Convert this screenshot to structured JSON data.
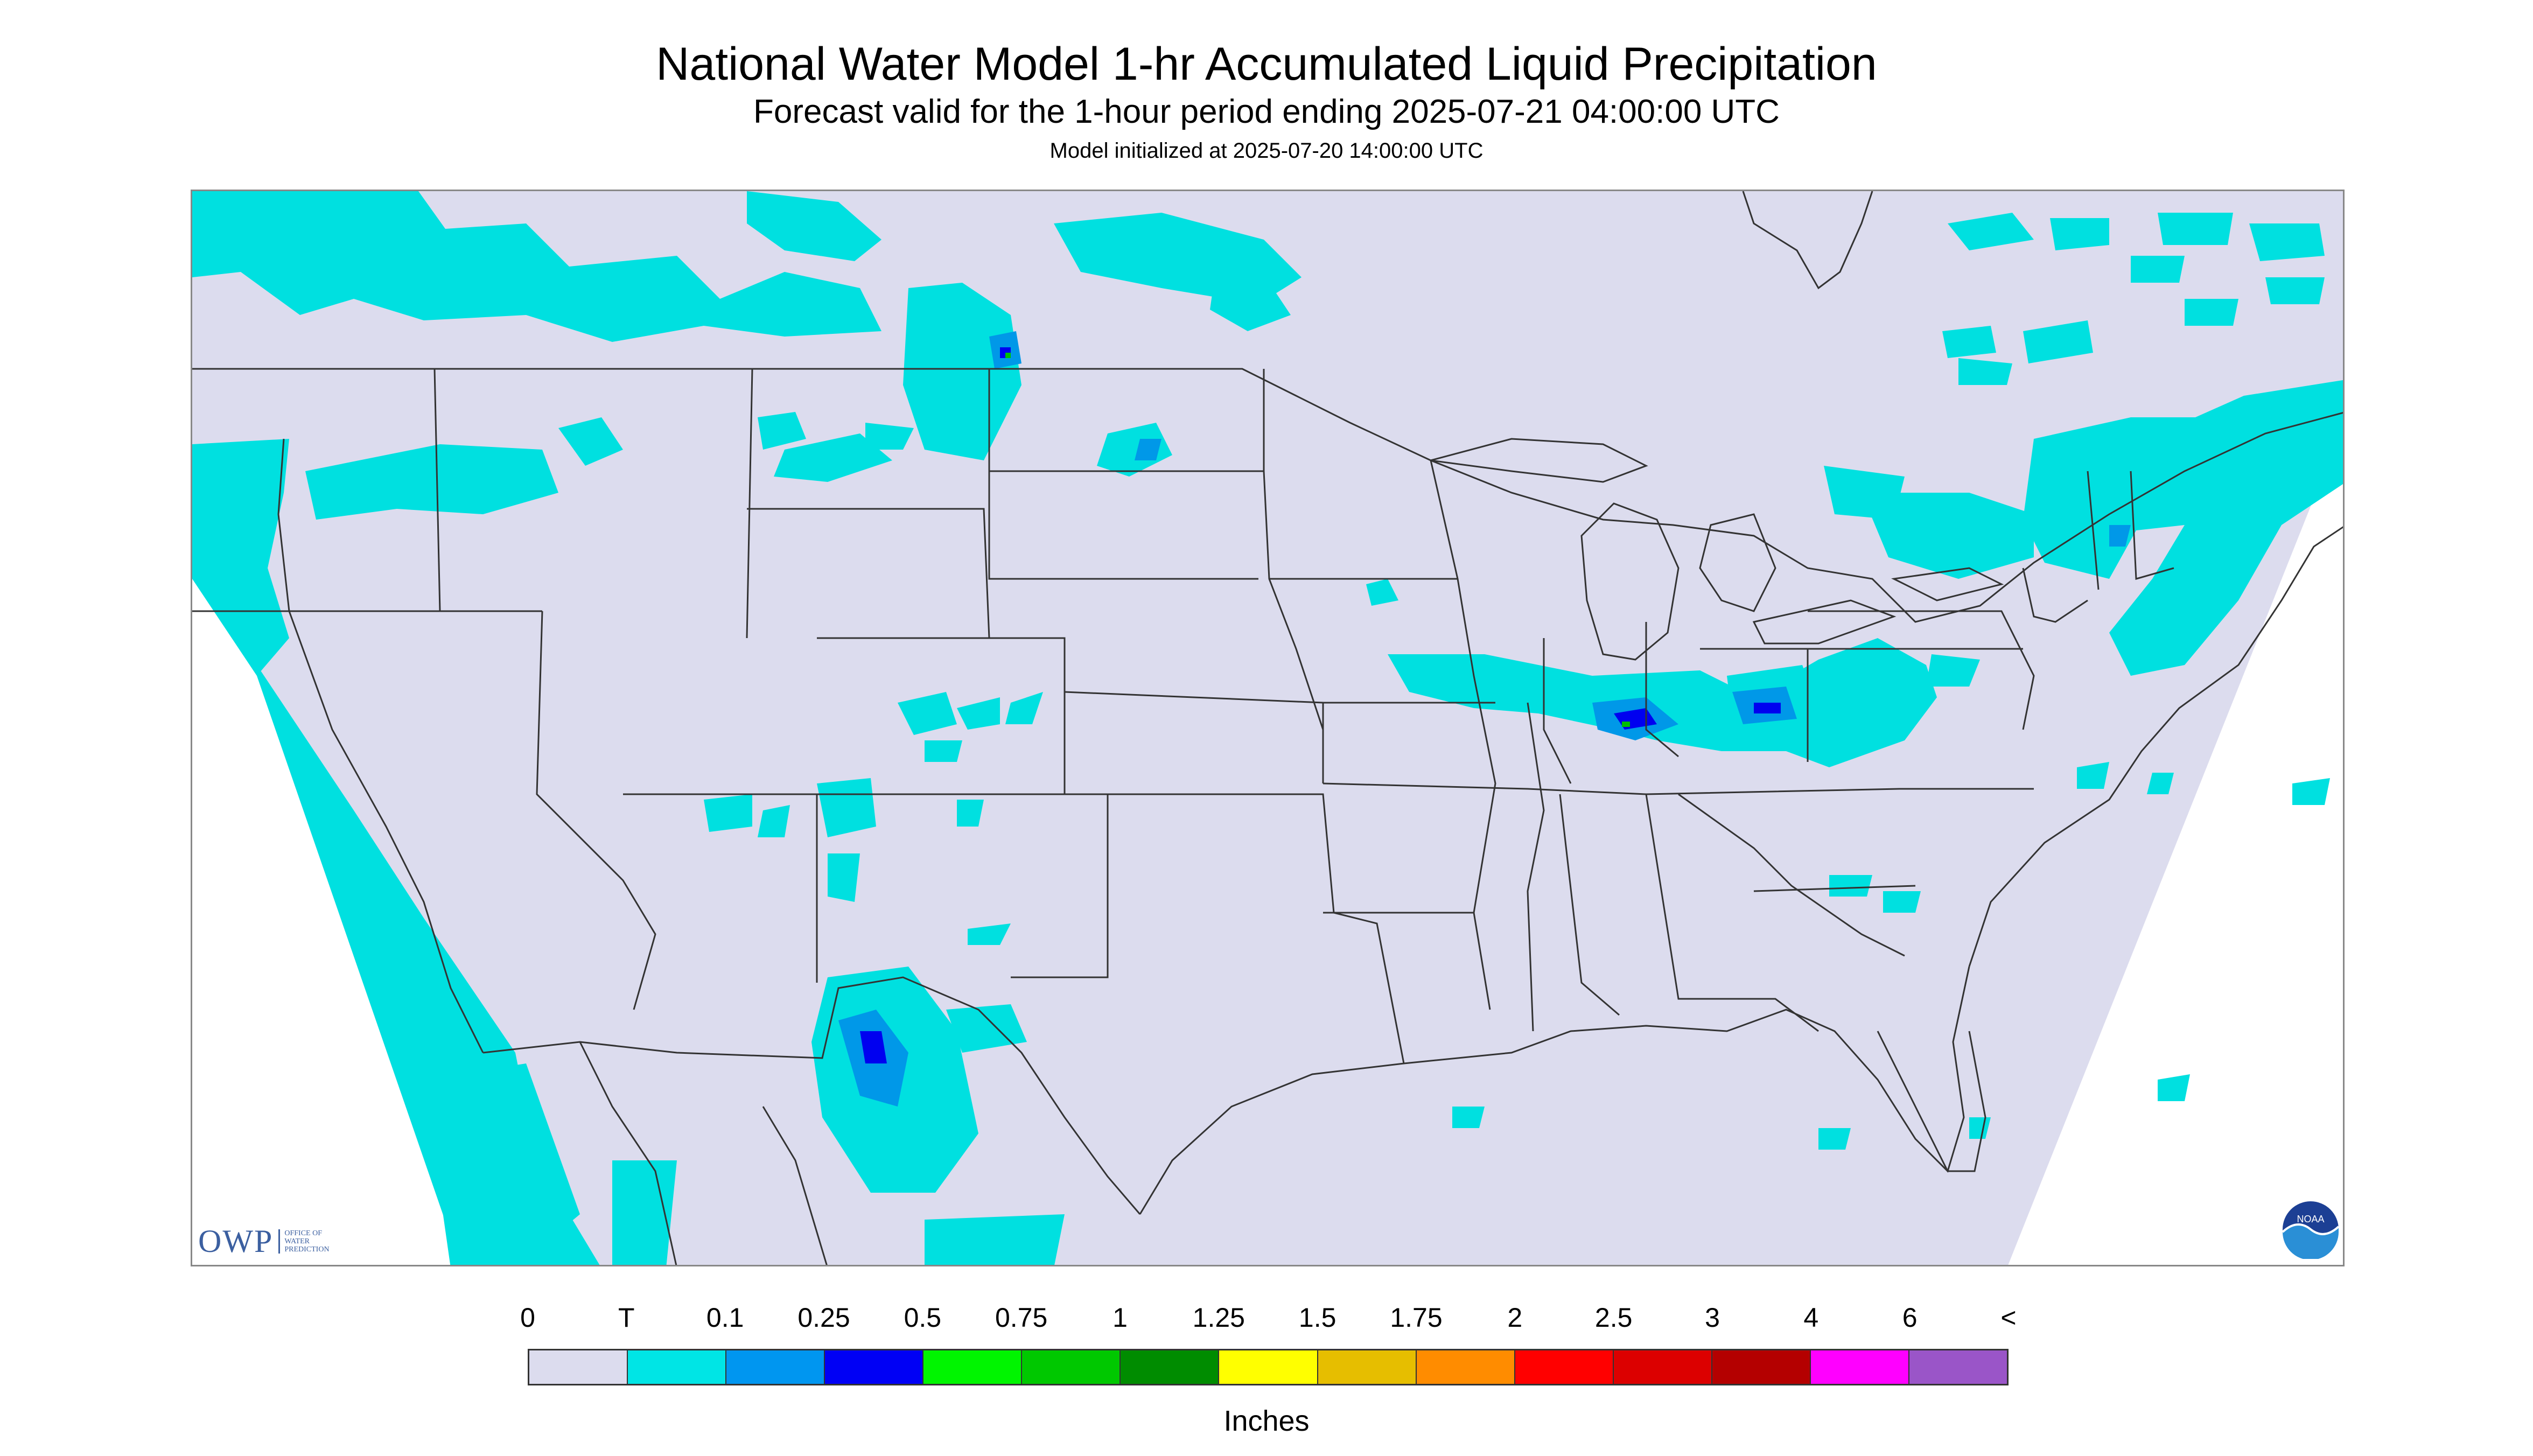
{
  "header": {
    "title": "National Water Model 1-hr Accumulated Liquid Precipitation",
    "subtitle": "Forecast valid for the 1-hour period ending 2025-07-21 04:00:00 UTC",
    "init": "Model initialized at 2025-07-20 14:00:00 UTC"
  },
  "map": {
    "background_color": "#ffffff",
    "domain_fill_color": "#dcdcee",
    "boundary_color": "#333333",
    "logos": {
      "owp": "OWP",
      "owp_sub": "OFFICE OF WATER PREDICTION",
      "noaa": "NOAA"
    },
    "precip_colors": {
      "trace": "#00e0e0",
      "light": "#0098e8",
      "moderate": "#0000f0",
      "heavy": "#00c000"
    }
  },
  "legend": {
    "labels": [
      "0",
      "T",
      "0.1",
      "0.25",
      "0.5",
      "0.75",
      "1",
      "1.25",
      "1.5",
      "1.75",
      "2",
      "2.5",
      "3",
      "4",
      "6",
      "<"
    ],
    "colors": [
      "#dcdcee",
      "#00e5e5",
      "#0096f0",
      "#0000f5",
      "#00f500",
      "#00c800",
      "#008c00",
      "#ffff00",
      "#e6be00",
      "#ff8c00",
      "#ff0000",
      "#dc0000",
      "#b40000",
      "#ff00ff",
      "#9a55c8"
    ],
    "unit": "Inches"
  }
}
